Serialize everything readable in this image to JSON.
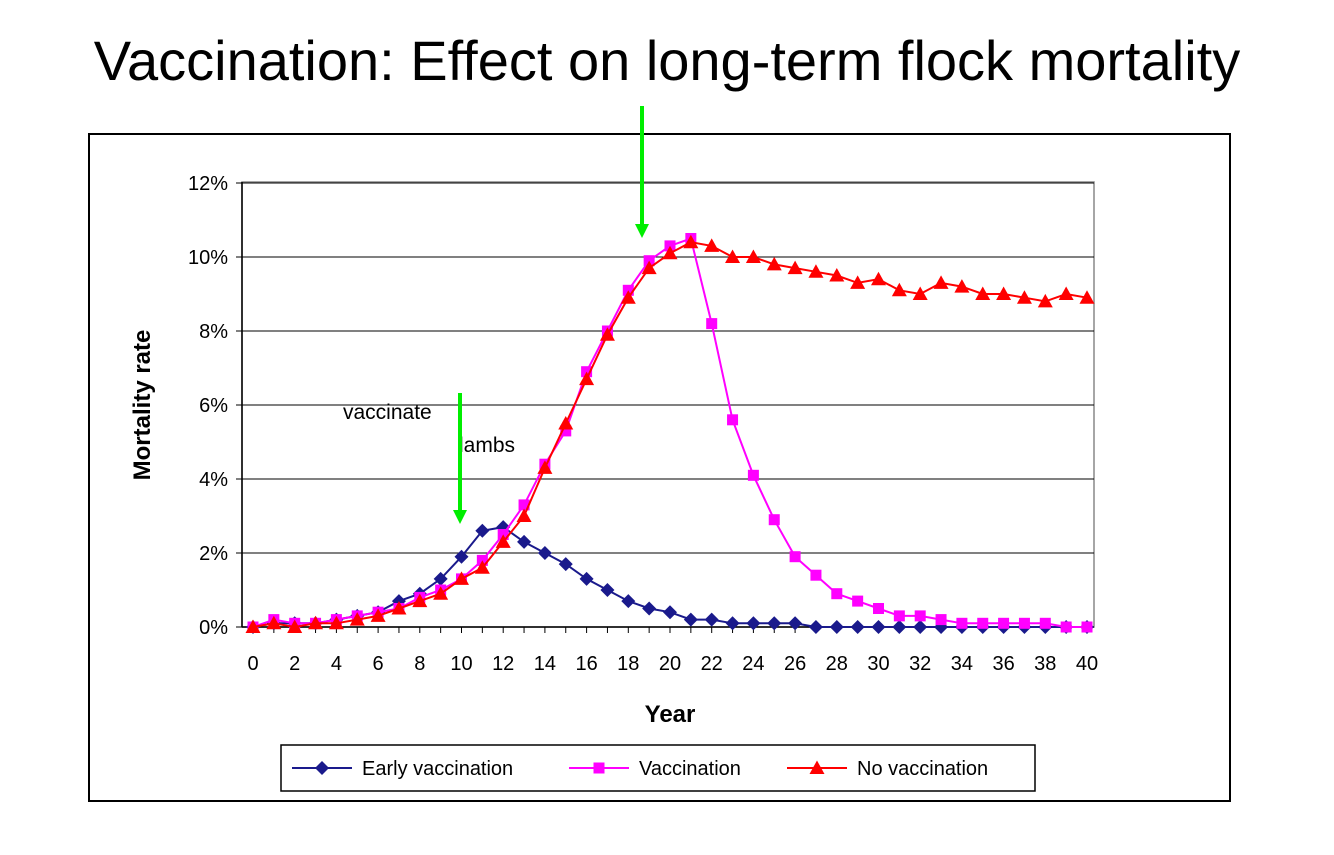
{
  "slide": {
    "title": "Vaccination: Effect on long-term flock mortality"
  },
  "annotations": {
    "vaccinate": "vaccinate",
    "lambs": "lambs"
  },
  "colors": {
    "early": "#1a1a8c",
    "vaccination": "#ff00ff",
    "none": "#ff0000",
    "arrow": "#00ee00",
    "grid": "#000000"
  },
  "chart_data": {
    "type": "line",
    "title": "Vaccination: Effect on long-term flock mortality",
    "xlabel": "Year",
    "ylabel": "Mortality rate",
    "xlim": [
      0,
      40
    ],
    "ylim": [
      0,
      0.12
    ],
    "x_ticks": [
      0,
      2,
      4,
      6,
      8,
      10,
      12,
      14,
      16,
      18,
      20,
      22,
      24,
      26,
      28,
      30,
      32,
      34,
      36,
      38,
      40
    ],
    "x_tick_labels": [
      "0",
      "2",
      "4",
      "6",
      "8",
      "10",
      "12",
      "14",
      "16",
      "18",
      "20",
      "22",
      "24",
      "26",
      "28",
      "30",
      "32",
      "34",
      "36",
      "38",
      "40"
    ],
    "y_ticks": [
      0,
      0.02,
      0.04,
      0.06,
      0.08,
      0.1,
      0.12
    ],
    "y_tick_labels": [
      "0%",
      "2%",
      "4%",
      "6%",
      "8%",
      "10%",
      "12%"
    ],
    "grid": "horizontal",
    "legend_position": "bottom",
    "x": [
      0,
      1,
      2,
      3,
      4,
      5,
      6,
      7,
      8,
      9,
      10,
      11,
      12,
      13,
      14,
      15,
      16,
      17,
      18,
      19,
      20,
      21,
      22,
      23,
      24,
      25,
      26,
      27,
      28,
      29,
      30,
      31,
      32,
      33,
      34,
      35,
      36,
      37,
      38,
      39,
      40
    ],
    "series": [
      {
        "name": "Early vaccination",
        "marker": "diamond",
        "color": "#1a1a8c",
        "values": [
          0.0,
          0.001,
          0.001,
          0.001,
          0.002,
          0.003,
          0.004,
          0.007,
          0.009,
          0.013,
          0.019,
          0.026,
          0.027,
          0.023,
          0.02,
          0.017,
          0.013,
          0.01,
          0.007,
          0.005,
          0.004,
          0.002,
          0.002,
          0.001,
          0.001,
          0.001,
          0.001,
          0.0,
          0.0,
          0.0,
          0.0,
          0.0,
          0.0,
          0.0,
          0.0,
          0.0,
          0.0,
          0.0,
          0.0,
          0.0,
          0.0
        ]
      },
      {
        "name": "Vaccination",
        "marker": "square",
        "color": "#ff00ff",
        "values": [
          0.0,
          0.002,
          0.001,
          0.001,
          0.002,
          0.003,
          0.004,
          0.005,
          0.008,
          0.01,
          0.013,
          0.018,
          0.025,
          0.033,
          0.044,
          0.053,
          0.069,
          0.08,
          0.091,
          0.099,
          0.103,
          0.105,
          0.082,
          0.056,
          0.041,
          0.029,
          0.019,
          0.014,
          0.009,
          0.007,
          0.005,
          0.003,
          0.003,
          0.002,
          0.001,
          0.001,
          0.001,
          0.001,
          0.001,
          0.0,
          0.0
        ]
      },
      {
        "name": "No vaccination",
        "marker": "triangle",
        "color": "#ff0000",
        "values": [
          0.0,
          0.001,
          0.0,
          0.001,
          0.001,
          0.002,
          0.003,
          0.005,
          0.007,
          0.009,
          0.013,
          0.016,
          0.023,
          0.03,
          0.043,
          0.055,
          0.067,
          0.079,
          0.089,
          0.097,
          0.101,
          0.104,
          0.103,
          0.1,
          0.1,
          0.098,
          0.097,
          0.096,
          0.095,
          0.093,
          0.094,
          0.091,
          0.09,
          0.093,
          0.092,
          0.09,
          0.09,
          0.089,
          0.088,
          0.09,
          0.089
        ]
      }
    ],
    "annotations": [
      {
        "text": "vaccinate",
        "x": 10
      },
      {
        "text": "lambs",
        "x": 10
      },
      {
        "arrow_at_year": 10
      },
      {
        "arrow_at_year": 19
      }
    ]
  }
}
